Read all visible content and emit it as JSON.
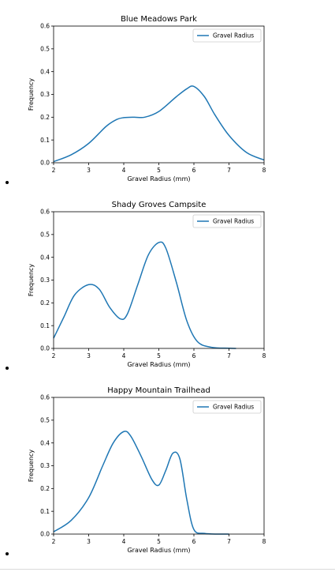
{
  "chart_data": [
    {
      "type": "line",
      "title": "Blue Meadows Park",
      "xlabel": "Gravel Radius (mm)",
      "ylabel": "Frequency",
      "xlim": [
        2,
        8
      ],
      "ylim": [
        0,
        0.6
      ],
      "xticks": [
        "2",
        "3",
        "4",
        "5",
        "6",
        "7",
        "8"
      ],
      "yticks": [
        "0.0",
        "0.1",
        "0.2",
        "0.3",
        "0.4",
        "0.5",
        "0.6"
      ],
      "legend_position": "top-right",
      "series": [
        {
          "name": "Gravel Radius",
          "color": "#1f77b4",
          "x": [
            2.0,
            2.5,
            3.0,
            3.5,
            3.8,
            4.0,
            4.3,
            4.6,
            5.0,
            5.5,
            5.8,
            6.0,
            6.3,
            6.6,
            7.0,
            7.5,
            8.0
          ],
          "y": [
            0.005,
            0.035,
            0.085,
            0.16,
            0.19,
            0.198,
            0.2,
            0.2,
            0.225,
            0.29,
            0.325,
            0.335,
            0.29,
            0.21,
            0.12,
            0.045,
            0.012
          ]
        }
      ]
    },
    {
      "type": "line",
      "title": "Shady Groves Campsite",
      "xlabel": "Gravel Radius (mm)",
      "ylabel": "Frequency",
      "xlim": [
        2,
        8
      ],
      "ylim": [
        0,
        0.6
      ],
      "xticks": [
        "2",
        "3",
        "4",
        "5",
        "6",
        "7",
        "8"
      ],
      "yticks": [
        "0.0",
        "0.1",
        "0.2",
        "0.3",
        "0.4",
        "0.5",
        "0.6"
      ],
      "legend_position": "top-right",
      "series": [
        {
          "name": "Gravel Radius",
          "color": "#1f77b4",
          "x": [
            2.0,
            2.3,
            2.6,
            3.0,
            3.3,
            3.6,
            3.9,
            4.1,
            4.4,
            4.7,
            5.0,
            5.2,
            5.5,
            5.8,
            6.1,
            6.5,
            7.0,
            7.2
          ],
          "y": [
            0.045,
            0.14,
            0.235,
            0.28,
            0.26,
            0.18,
            0.13,
            0.15,
            0.28,
            0.41,
            0.465,
            0.44,
            0.29,
            0.12,
            0.03,
            0.005,
            0.001,
            0.0
          ]
        }
      ]
    },
    {
      "type": "line",
      "title": "Happy Mountain Trailhead",
      "xlabel": "Gravel Radius (mm)",
      "ylabel": "Frequency",
      "xlim": [
        2,
        8
      ],
      "ylim": [
        0,
        0.6
      ],
      "xticks": [
        "2",
        "3",
        "4",
        "5",
        "6",
        "7",
        "8"
      ],
      "yticks": [
        "0.0",
        "0.1",
        "0.2",
        "0.3",
        "0.4",
        "0.5",
        "0.6"
      ],
      "legend_position": "top-right",
      "series": [
        {
          "name": "Gravel Radius",
          "color": "#1f77b4",
          "x": [
            2.0,
            2.5,
            3.0,
            3.4,
            3.7,
            4.0,
            4.2,
            4.5,
            4.8,
            5.0,
            5.2,
            5.4,
            5.6,
            5.8,
            6.0,
            6.3,
            6.7,
            7.0
          ],
          "y": [
            0.01,
            0.06,
            0.16,
            0.3,
            0.4,
            0.45,
            0.43,
            0.34,
            0.24,
            0.215,
            0.28,
            0.355,
            0.33,
            0.15,
            0.02,
            0.003,
            0.0,
            0.0
          ]
        }
      ]
    }
  ]
}
